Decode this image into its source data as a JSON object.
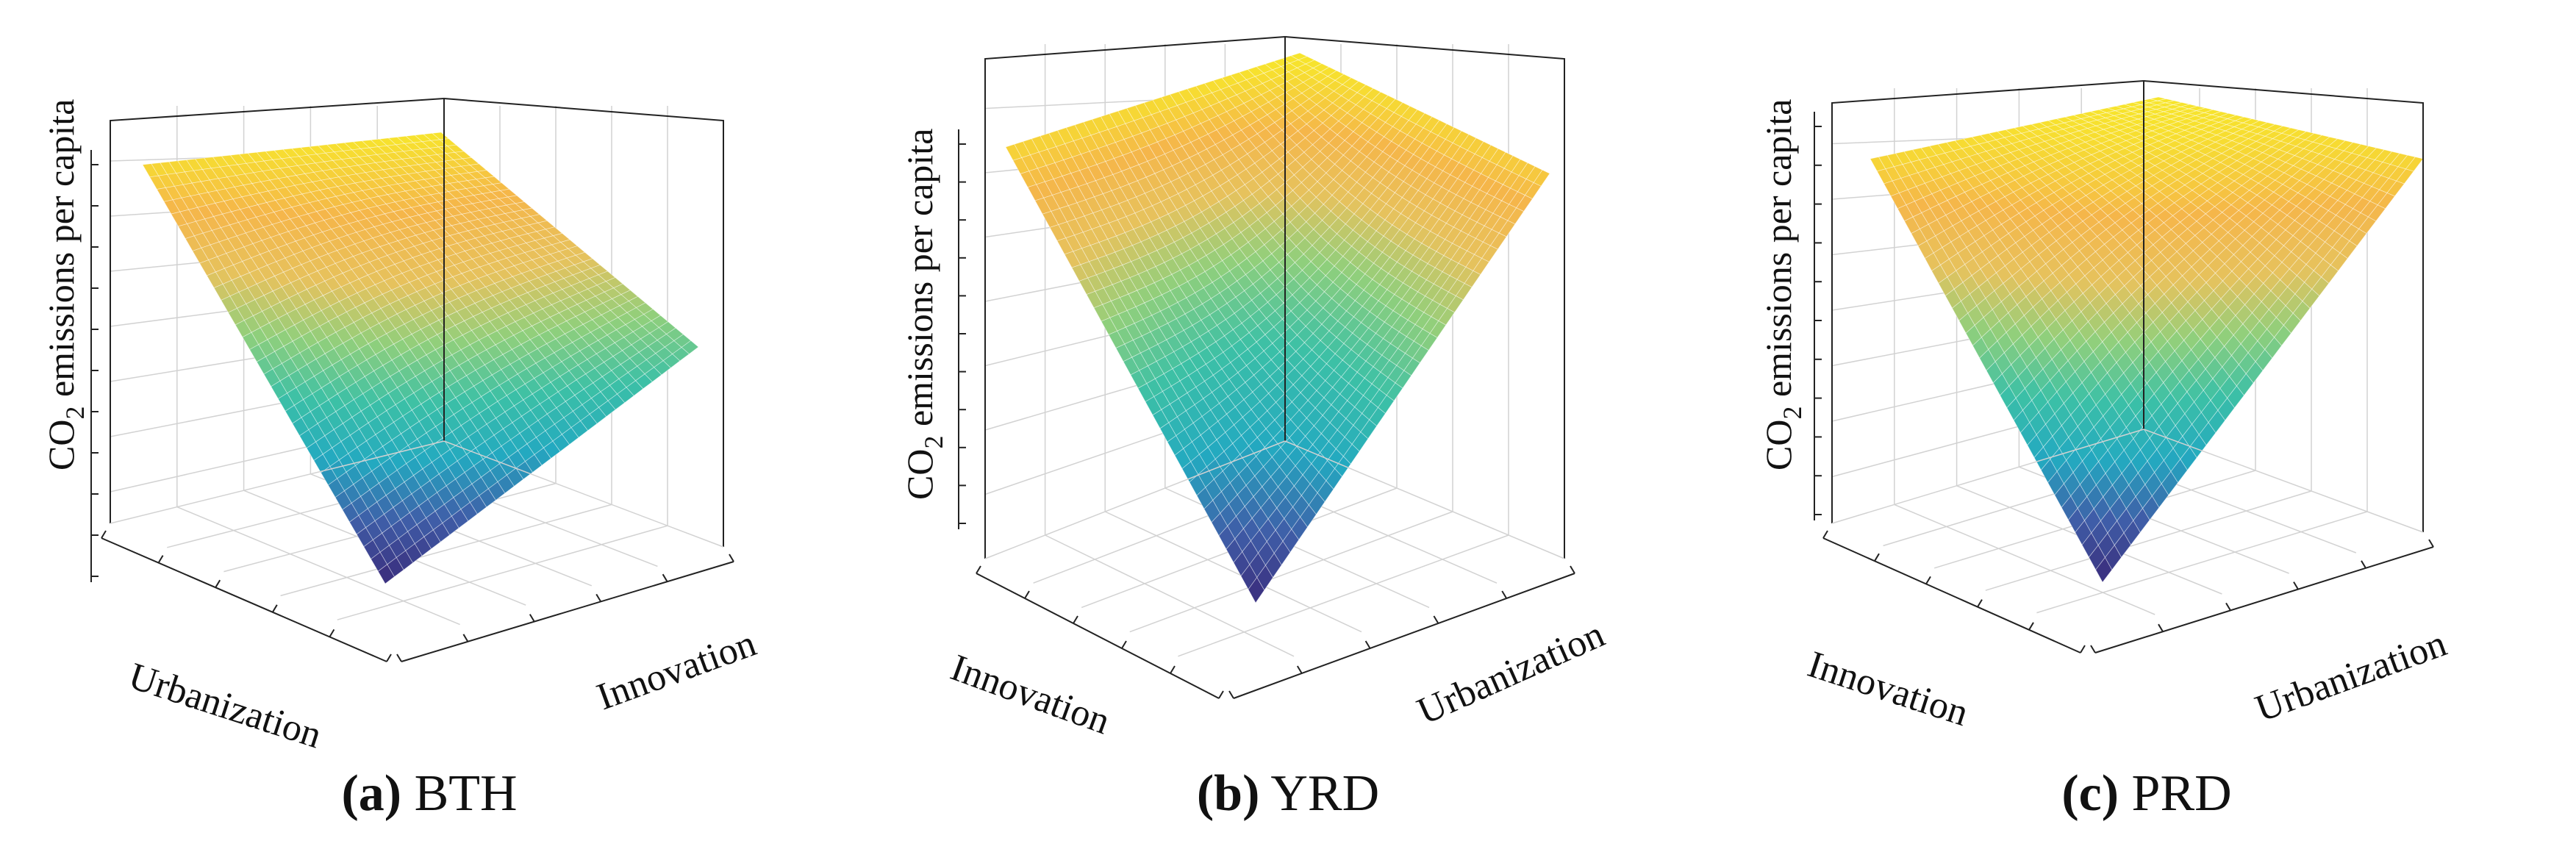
{
  "chart_data": [
    {
      "type": "surface",
      "panel": "a",
      "region": "BTH",
      "zlabel_main": "CO",
      "zlabel_sub": "2",
      "zlabel_rest": " emissions per capita",
      "axis_left": "Urbanization",
      "axis_right": "Innovation",
      "z_corners_normalized": {
        "left": 0.96,
        "back": 1.0,
        "right": 0.5,
        "front": 0.0
      },
      "colormap": [
        "#3a2a7a",
        "#3f5ea8",
        "#23a9c0",
        "#3cc0a6",
        "#8fcf7c",
        "#e6c25d",
        "#f5b64a",
        "#f7e62b"
      ]
    },
    {
      "type": "surface",
      "panel": "b",
      "region": "YRD",
      "zlabel_main": "CO",
      "zlabel_sub": "2",
      "zlabel_rest": " emissions per capita",
      "axis_left": "Innovation",
      "axis_right": "Urbanization",
      "z_corners_normalized": {
        "left": 0.95,
        "back": 1.0,
        "right": 0.92,
        "front": 0.0
      },
      "colormap": [
        "#3a2a7a",
        "#3f5ea8",
        "#23a9c0",
        "#3cc0a6",
        "#8fcf7c",
        "#e6c25d",
        "#f5b64a",
        "#f7e62b"
      ]
    },
    {
      "type": "surface",
      "panel": "c",
      "region": "PRD",
      "zlabel_main": "CO",
      "zlabel_sub": "2",
      "zlabel_rest": " emissions per capita",
      "axis_left": "Innovation",
      "axis_right": "Urbanization",
      "z_corners_normalized": {
        "left": 0.96,
        "back": 1.0,
        "right": 0.96,
        "front": 0.0
      },
      "colormap": [
        "#3a2a7a",
        "#3f5ea8",
        "#23a9c0",
        "#3cc0a6",
        "#8fcf7c",
        "#e6c25d",
        "#f5b64a",
        "#f7e62b"
      ]
    }
  ],
  "captions": [
    {
      "letter": "(a)",
      "name": " BTH"
    },
    {
      "letter": "(b)",
      "name": " YRD"
    },
    {
      "letter": "(c)",
      "name": " PRD"
    }
  ]
}
